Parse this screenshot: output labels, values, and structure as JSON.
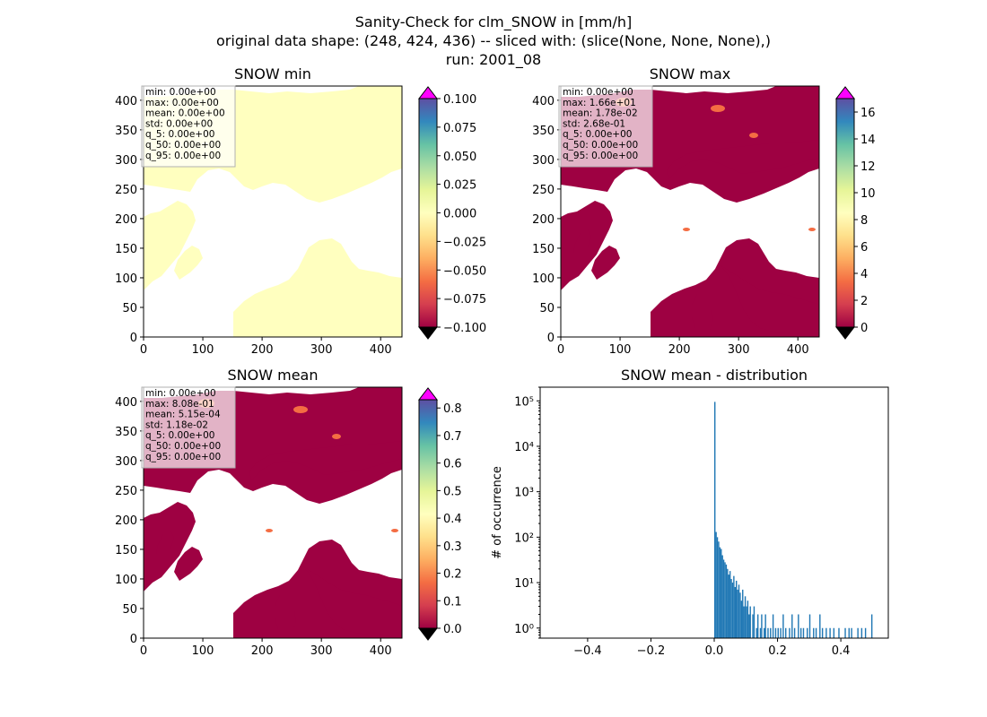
{
  "figure": {
    "title_lines": [
      "Sanity-Check for clm_SNOW in [mm/h]",
      "original data shape: (248, 424, 436) -- sliced with: (slice(None, None, None),)",
      "run: 2001_08"
    ]
  },
  "colors": {
    "sea": "#ffffff",
    "land_min": "#ffffbf",
    "land_low": "#9e0142",
    "hot": "#f46d43",
    "over": "#ff00ff",
    "under": "#000000",
    "hist_bar": "#1f77b4"
  },
  "chart_data": [
    {
      "type": "heatmap",
      "title": "SNOW min",
      "xlim": [
        0,
        436
      ],
      "ylim": [
        0,
        424
      ],
      "x_ticks": [
        "0",
        "100",
        "200",
        "300",
        "400"
      ],
      "y_ticks": [
        "0",
        "50",
        "100",
        "150",
        "200",
        "250",
        "300",
        "350",
        "400"
      ],
      "colorbar": {
        "colormap": "Spectral",
        "range": [
          -0.1,
          0.1
        ],
        "ticks": [
          "0.100",
          "0.075",
          "0.050",
          "0.025",
          "0.000",
          "−0.025",
          "−0.050",
          "−0.075",
          "−0.100"
        ],
        "extend": "both"
      },
      "stats": [
        "min: 0.00e+00",
        "max: 0.00e+00",
        "mean: 0.00e+00",
        "std: 0.00e+00",
        "q_5: 0.00e+00",
        "q_50: 0.00e+00",
        "q_95: 0.00e+00"
      ]
    },
    {
      "type": "heatmap",
      "title": "SNOW max",
      "xlim": [
        0,
        436
      ],
      "ylim": [
        0,
        424
      ],
      "x_ticks": [
        "0",
        "100",
        "200",
        "300",
        "400"
      ],
      "y_ticks": [
        "0",
        "50",
        "100",
        "150",
        "200",
        "250",
        "300",
        "350",
        "400"
      ],
      "colorbar": {
        "colormap": "Spectral",
        "range": [
          0,
          17
        ],
        "ticks": [
          "16",
          "14",
          "12",
          "10",
          "8",
          "6",
          "4",
          "2",
          "0"
        ],
        "extend": "both"
      },
      "stats": [
        "min: 0.00e+00",
        "max: 1.66e+01",
        "mean: 1.78e-02",
        "std: 2.68e-01",
        "q_5: 0.00e+00",
        "q_50: 0.00e+00",
        "q_95: 0.00e+00"
      ]
    },
    {
      "type": "heatmap",
      "title": "SNOW mean",
      "xlim": [
        0,
        436
      ],
      "ylim": [
        0,
        424
      ],
      "x_ticks": [
        "0",
        "100",
        "200",
        "300",
        "400"
      ],
      "y_ticks": [
        "0",
        "50",
        "100",
        "150",
        "200",
        "250",
        "300",
        "350",
        "400"
      ],
      "colorbar": {
        "colormap": "Spectral",
        "range": [
          0,
          0.83
        ],
        "ticks": [
          "0.8",
          "0.7",
          "0.6",
          "0.5",
          "0.4",
          "0.3",
          "0.2",
          "0.1",
          "0.0"
        ],
        "extend": "both"
      },
      "stats": [
        "min: 0.00e+00",
        "max: 8.08e-01",
        "mean: 5.15e-04",
        "std: 1.18e-02",
        "q_5: 0.00e+00",
        "q_50: 0.00e+00",
        "q_95: 0.00e+00"
      ]
    },
    {
      "type": "bar",
      "title": "SNOW mean - distribution",
      "ylabel": "# of occurrence",
      "xlabel": "",
      "yscale": "log",
      "xlim": [
        -0.55,
        0.55
      ],
      "ylim": [
        0.6,
        200000
      ],
      "x_ticks": [
        -0.4,
        -0.2,
        0.0,
        0.2,
        0.4
      ],
      "x_tick_labels": [
        "−0.4",
        "−0.2",
        "0.0",
        "0.2",
        "0.4"
      ],
      "y_tick_labels": [
        "10⁰",
        "10¹",
        "10²",
        "10³",
        "10⁴",
        "10⁵"
      ],
      "bin_width": 0.004,
      "bins": [
        [
          0.0,
          95000
        ],
        [
          0.004,
          130
        ],
        [
          0.008,
          100
        ],
        [
          0.012,
          80
        ],
        [
          0.016,
          60
        ],
        [
          0.02,
          55
        ],
        [
          0.024,
          40
        ],
        [
          0.028,
          32
        ],
        [
          0.032,
          28
        ],
        [
          0.036,
          25
        ],
        [
          0.04,
          20
        ],
        [
          0.044,
          15
        ],
        [
          0.048,
          18
        ],
        [
          0.052,
          12
        ],
        [
          0.056,
          10
        ],
        [
          0.06,
          14
        ],
        [
          0.064,
          8
        ],
        [
          0.068,
          11
        ],
        [
          0.072,
          7
        ],
        [
          0.076,
          9
        ],
        [
          0.08,
          6
        ],
        [
          0.084,
          4
        ],
        [
          0.088,
          7
        ],
        [
          0.092,
          3
        ],
        [
          0.096,
          5
        ],
        [
          0.1,
          3
        ],
        [
          0.104,
          4
        ],
        [
          0.108,
          2
        ],
        [
          0.112,
          3
        ],
        [
          0.12,
          2
        ],
        [
          0.124,
          3
        ],
        [
          0.132,
          1
        ],
        [
          0.136,
          2
        ],
        [
          0.144,
          1
        ],
        [
          0.148,
          2
        ],
        [
          0.156,
          1
        ],
        [
          0.16,
          2
        ],
        [
          0.168,
          1
        ],
        [
          0.176,
          1
        ],
        [
          0.184,
          2
        ],
        [
          0.192,
          1
        ],
        [
          0.2,
          1
        ],
        [
          0.208,
          1
        ],
        [
          0.216,
          2
        ],
        [
          0.224,
          1
        ],
        [
          0.236,
          1
        ],
        [
          0.244,
          2
        ],
        [
          0.252,
          1
        ],
        [
          0.264,
          2
        ],
        [
          0.272,
          1
        ],
        [
          0.28,
          1
        ],
        [
          0.292,
          1
        ],
        [
          0.3,
          2
        ],
        [
          0.312,
          1
        ],
        [
          0.32,
          1
        ],
        [
          0.332,
          2
        ],
        [
          0.34,
          1
        ],
        [
          0.352,
          1
        ],
        [
          0.364,
          1
        ],
        [
          0.376,
          1
        ],
        [
          0.392,
          1
        ],
        [
          0.412,
          1
        ],
        [
          0.424,
          1
        ],
        [
          0.432,
          1
        ],
        [
          0.452,
          1
        ],
        [
          0.464,
          1
        ],
        [
          0.476,
          1
        ],
        [
          0.496,
          2
        ]
      ]
    }
  ]
}
